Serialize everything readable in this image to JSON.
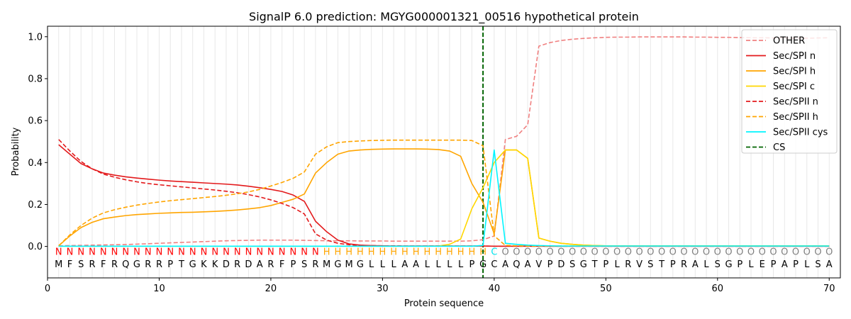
{
  "chart_data": {
    "type": "line",
    "title": "SignalP 6.0 prediction: MGYG000001321_00516 hypothetical protein",
    "xlabel": "Protein sequence",
    "ylabel": "Probability",
    "xlim": [
      0,
      71
    ],
    "ylim": [
      -0.15,
      1.05
    ],
    "x_ticks": [
      0,
      10,
      20,
      30,
      40,
      50,
      60,
      70
    ],
    "y_ticks": [
      0.0,
      0.2,
      0.4,
      0.6,
      0.8,
      1.0
    ],
    "y_tick_labels": [
      "0.0",
      "0.2",
      "0.4",
      "0.6",
      "0.8",
      "1.0"
    ],
    "grid": "vertical lines at every residue",
    "legend_position": "top-right",
    "cleavage_site": 39,
    "sequence": [
      "M",
      "F",
      "S",
      "R",
      "F",
      "R",
      "Q",
      "G",
      "R",
      "R",
      "P",
      "T",
      "G",
      "K",
      "K",
      "D",
      "R",
      "D",
      "A",
      "R",
      "F",
      "P",
      "S",
      "R",
      "M",
      "G",
      "M",
      "G",
      "L",
      "L",
      "L",
      "A",
      "A",
      "L",
      "L",
      "L",
      "L",
      "P",
      "G",
      "C",
      "A",
      "Q",
      "A",
      "V",
      "P",
      "D",
      "S",
      "G",
      "T",
      "P",
      "L",
      "R",
      "V",
      "S",
      "T",
      "P",
      "R",
      "A",
      "L",
      "S",
      "G",
      "P",
      "L",
      "E",
      "P",
      "A",
      "P",
      "L",
      "S",
      "A"
    ],
    "labels": [
      "N",
      "N",
      "N",
      "N",
      "N",
      "N",
      "N",
      "N",
      "N",
      "N",
      "N",
      "N",
      "N",
      "N",
      "N",
      "N",
      "N",
      "N",
      "N",
      "N",
      "N",
      "N",
      "N",
      "N",
      "H",
      "H",
      "H",
      "H",
      "H",
      "H",
      "H",
      "H",
      "H",
      "H",
      "H",
      "H",
      "H",
      "H",
      "H",
      "C",
      "O",
      "O",
      "O",
      "O",
      "O",
      "O",
      "O",
      "O",
      "O",
      "O",
      "O",
      "O",
      "O",
      "O",
      "O",
      "O",
      "O",
      "O",
      "O",
      "O",
      "O",
      "O",
      "O",
      "O",
      "O",
      "O",
      "O",
      "O",
      "O",
      "O"
    ],
    "label_colors": {
      "N": "#ff0000",
      "H": "#ffa500",
      "C": "#00e5ee",
      "O": "#808080"
    },
    "series": [
      {
        "name": "OTHER",
        "color": "#f08080",
        "dash": "dashed",
        "values": [
          0.003,
          0.004,
          0.005,
          0.006,
          0.007,
          0.008,
          0.009,
          0.011,
          0.013,
          0.015,
          0.017,
          0.019,
          0.021,
          0.023,
          0.025,
          0.027,
          0.028,
          0.029,
          0.03,
          0.03,
          0.03,
          0.03,
          0.029,
          0.028,
          0.027,
          0.027,
          0.027,
          0.026,
          0.026,
          0.026,
          0.025,
          0.025,
          0.025,
          0.025,
          0.025,
          0.025,
          0.025,
          0.027,
          0.032,
          0.05,
          0.51,
          0.525,
          0.58,
          0.955,
          0.972,
          0.982,
          0.988,
          0.992,
          0.995,
          0.997,
          0.998,
          0.998,
          0.999,
          0.999,
          0.999,
          0.999,
          0.999,
          0.998,
          0.998,
          0.997,
          0.997,
          0.996,
          0.995,
          0.995,
          0.994,
          0.994,
          0.993,
          0.993,
          0.994,
          0.995
        ]
      },
      {
        "name": "Sec/SPI n",
        "color": "#e31a1c",
        "dash": "solid",
        "values": [
          0.485,
          0.44,
          0.395,
          0.37,
          0.35,
          0.34,
          0.332,
          0.326,
          0.321,
          0.316,
          0.312,
          0.309,
          0.306,
          0.303,
          0.3,
          0.297,
          0.293,
          0.287,
          0.28,
          0.272,
          0.262,
          0.245,
          0.215,
          0.12,
          0.07,
          0.03,
          0.012,
          0.006,
          0.004,
          0.003,
          0.002,
          0.002,
          0.002,
          0.002,
          0.002,
          0.002,
          0.002,
          0.002,
          0.002,
          0.001,
          0.001,
          0.001,
          0.001,
          0.001,
          0.001,
          0.001,
          0.001,
          0.001,
          0.001,
          0.001,
          0.001,
          0.001,
          0.001,
          0.001,
          0.001,
          0.001,
          0.001,
          0.001,
          0.001,
          0.001,
          0.001,
          0.001,
          0.001,
          0.001,
          0.001,
          0.001,
          0.001,
          0.001,
          0.001,
          0.001
        ]
      },
      {
        "name": "Sec/SPI h",
        "color": "#ffa500",
        "dash": "solid",
        "values": [
          0.003,
          0.05,
          0.09,
          0.115,
          0.132,
          0.14,
          0.147,
          0.152,
          0.155,
          0.158,
          0.16,
          0.162,
          0.163,
          0.165,
          0.167,
          0.17,
          0.174,
          0.179,
          0.185,
          0.195,
          0.21,
          0.225,
          0.25,
          0.35,
          0.4,
          0.44,
          0.455,
          0.46,
          0.463,
          0.464,
          0.465,
          0.465,
          0.465,
          0.464,
          0.462,
          0.455,
          0.43,
          0.3,
          0.21,
          0.06,
          0.46,
          0.46,
          0.42,
          0.04,
          0.025,
          0.015,
          0.01,
          0.006,
          0.004,
          0.003,
          0.003,
          0.003,
          0.003,
          0.003,
          0.003,
          0.003,
          0.003,
          0.003,
          0.003,
          0.003,
          0.003,
          0.003,
          0.003,
          0.003,
          0.003,
          0.003,
          0.003,
          0.003,
          0.003,
          0.003
        ]
      },
      {
        "name": "Sec/SPI c",
        "color": "#ffd700",
        "dash": "solid",
        "values": [
          0.001,
          0.001,
          0.001,
          0.001,
          0.001,
          0.001,
          0.001,
          0.001,
          0.001,
          0.001,
          0.001,
          0.001,
          0.001,
          0.001,
          0.001,
          0.001,
          0.001,
          0.001,
          0.001,
          0.001,
          0.001,
          0.001,
          0.001,
          0.001,
          0.001,
          0.001,
          0.001,
          0.001,
          0.001,
          0.001,
          0.001,
          0.001,
          0.001,
          0.001,
          0.002,
          0.01,
          0.035,
          0.18,
          0.28,
          0.4,
          0.46,
          0.46,
          0.42,
          0.04,
          0.025,
          0.015,
          0.01,
          0.006,
          0.004,
          0.003,
          0.003,
          0.003,
          0.003,
          0.003,
          0.003,
          0.003,
          0.003,
          0.003,
          0.003,
          0.003,
          0.003,
          0.003,
          0.003,
          0.003,
          0.003,
          0.003,
          0.003,
          0.003,
          0.003,
          0.003
        ]
      },
      {
        "name": "Sec/SPII n",
        "color": "#e31a1c",
        "dash": "dashed",
        "values": [
          0.51,
          0.455,
          0.405,
          0.37,
          0.345,
          0.33,
          0.318,
          0.308,
          0.3,
          0.294,
          0.289,
          0.284,
          0.279,
          0.274,
          0.269,
          0.263,
          0.256,
          0.247,
          0.236,
          0.222,
          0.205,
          0.185,
          0.155,
          0.06,
          0.03,
          0.015,
          0.008,
          0.005,
          0.004,
          0.003,
          0.003,
          0.002,
          0.002,
          0.002,
          0.002,
          0.002,
          0.002,
          0.002,
          0.002,
          0.001,
          0.001,
          0.001,
          0.001,
          0.001,
          0.001,
          0.001,
          0.001,
          0.001,
          0.001,
          0.001,
          0.001,
          0.001,
          0.001,
          0.001,
          0.001,
          0.001,
          0.001,
          0.001,
          0.001,
          0.001,
          0.001,
          0.001,
          0.001,
          0.001,
          0.001,
          0.001,
          0.001,
          0.001,
          0.001,
          0.001
        ]
      },
      {
        "name": "Sec/SPII h",
        "color": "#ffa500",
        "dash": "dashed",
        "values": [
          0.003,
          0.055,
          0.1,
          0.135,
          0.16,
          0.175,
          0.187,
          0.197,
          0.205,
          0.212,
          0.218,
          0.223,
          0.228,
          0.233,
          0.238,
          0.244,
          0.251,
          0.26,
          0.272,
          0.288,
          0.305,
          0.325,
          0.355,
          0.44,
          0.475,
          0.495,
          0.5,
          0.503,
          0.505,
          0.506,
          0.507,
          0.507,
          0.507,
          0.507,
          0.507,
          0.507,
          0.507,
          0.505,
          0.48,
          0.05,
          0.005,
          0.003,
          0.002,
          0.002,
          0.002,
          0.002,
          0.002,
          0.002,
          0.002,
          0.002,
          0.002,
          0.002,
          0.002,
          0.002,
          0.002,
          0.002,
          0.002,
          0.002,
          0.002,
          0.002,
          0.002,
          0.002,
          0.002,
          0.002,
          0.002,
          0.002,
          0.002,
          0.002,
          0.002,
          0.002
        ]
      },
      {
        "name": "Sec/SPII cys",
        "color": "#00f5ff",
        "dash": "solid",
        "values": [
          0.001,
          0.001,
          0.001,
          0.001,
          0.001,
          0.001,
          0.001,
          0.001,
          0.001,
          0.001,
          0.001,
          0.001,
          0.001,
          0.001,
          0.001,
          0.001,
          0.001,
          0.001,
          0.001,
          0.001,
          0.001,
          0.001,
          0.001,
          0.001,
          0.001,
          0.001,
          0.001,
          0.001,
          0.001,
          0.001,
          0.001,
          0.001,
          0.001,
          0.001,
          0.001,
          0.001,
          0.001,
          0.001,
          0.005,
          0.46,
          0.015,
          0.01,
          0.006,
          0.004,
          0.003,
          0.002,
          0.002,
          0.002,
          0.002,
          0.002,
          0.002,
          0.002,
          0.002,
          0.002,
          0.002,
          0.002,
          0.002,
          0.002,
          0.002,
          0.002,
          0.002,
          0.002,
          0.002,
          0.002,
          0.002,
          0.002,
          0.002,
          0.002,
          0.002,
          0.002
        ]
      }
    ],
    "cs_legend": {
      "name": "CS",
      "color": "#006400",
      "dash": "dashed"
    }
  }
}
